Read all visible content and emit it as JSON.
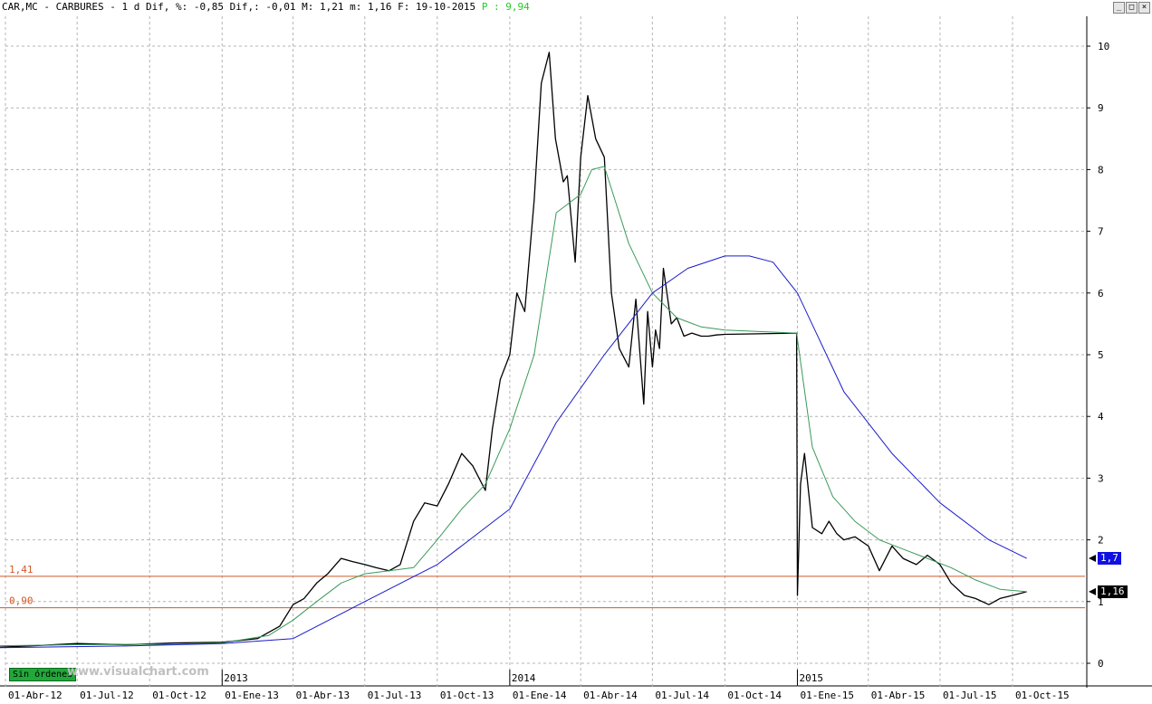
{
  "header": {
    "text": "CAR,MC - CARBURES -  1 d Dif, %: -0,85 Dif,: -0,01 M: 1,21 m: 1,16 F: 19-10-2015",
    "last_label": "P : 9,94"
  },
  "window_buttons": [
    "_",
    "□",
    "×"
  ],
  "orders_badge": "Sin órdenes",
  "watermark": "www.visualchart.com",
  "current_values": {
    "ma_long": "1,7",
    "price": "1,16"
  },
  "colors": {
    "price": "#000000",
    "ma_short": "#3a9a5a",
    "ma_long": "#1a1acc",
    "hline": "#d05a2a",
    "ma_long_box": "#1010e0",
    "price_box": "#000000"
  },
  "chart_data": {
    "type": "line",
    "ylim": [
      0,
      10.5
    ],
    "y_ticks": [
      0,
      1,
      2,
      3,
      4,
      5,
      6,
      7,
      8,
      9,
      10
    ],
    "x_ticks": [
      "01-Abr-12",
      "01-Jul-12",
      "01-Oct-12",
      "01-Ene-13",
      "01-Abr-13",
      "01-Jul-13",
      "01-Oct-13",
      "01-Ene-14",
      "01-Abr-14",
      "01-Jul-14",
      "01-Oct-14",
      "01-Ene-15",
      "01-Abr-15",
      "01-Jul-15",
      "01-Oct-15"
    ],
    "year_labels": [
      "2013",
      "2014",
      "2015"
    ],
    "hlines": [
      {
        "label": "1,41",
        "value": 1.41
      },
      {
        "label": "0,90",
        "value": 0.9
      }
    ],
    "series": [
      {
        "key": "price",
        "x": [
          "2012-03-01",
          "2012-05-01",
          "2012-07-01",
          "2012-09-01",
          "2012-11-01",
          "2013-01-01",
          "2013-02-15",
          "2013-03-15",
          "2013-04-01",
          "2013-04-15",
          "2013-05-01",
          "2013-05-15",
          "2013-06-01",
          "2013-06-15",
          "2013-07-01",
          "2013-07-15",
          "2013-08-01",
          "2013-08-15",
          "2013-09-01",
          "2013-09-15",
          "2013-10-01",
          "2013-10-15",
          "2013-11-01",
          "2013-11-15",
          "2013-12-01",
          "2013-12-10",
          "2013-12-20",
          "2014-01-01",
          "2014-01-10",
          "2014-01-20",
          "2014-02-01",
          "2014-02-10",
          "2014-02-20",
          "2014-02-28",
          "2014-03-10",
          "2014-03-15",
          "2014-03-25",
          "2014-04-01",
          "2014-04-10",
          "2014-04-20",
          "2014-05-01",
          "2014-05-10",
          "2014-05-20",
          "2014-06-01",
          "2014-06-10",
          "2014-06-20",
          "2014-06-25",
          "2014-07-01",
          "2014-07-05",
          "2014-07-10",
          "2014-07-15",
          "2014-07-25",
          "2014-08-01",
          "2014-08-10",
          "2014-08-20",
          "2014-09-01",
          "2014-09-10",
          "2014-09-20",
          "2014-10-01",
          "2014-12-31",
          "2015-01-01",
          "2015-01-05",
          "2015-01-10",
          "2015-01-20",
          "2015-02-01",
          "2015-02-10",
          "2015-02-20",
          "2015-03-01",
          "2015-03-15",
          "2015-04-01",
          "2015-04-15",
          "2015-05-01",
          "2015-05-15",
          "2015-06-01",
          "2015-06-15",
          "2015-07-01",
          "2015-07-15",
          "2015-08-01",
          "2015-08-15",
          "2015-09-01",
          "2015-09-15",
          "2015-10-01",
          "2015-10-19"
        ],
        "values": [
          0.25,
          0.28,
          0.32,
          0.3,
          0.33,
          0.34,
          0.4,
          0.6,
          0.95,
          1.05,
          1.3,
          1.45,
          1.7,
          1.65,
          1.6,
          1.55,
          1.5,
          1.6,
          2.3,
          2.6,
          2.55,
          2.9,
          3.4,
          3.2,
          2.8,
          3.8,
          4.6,
          5.0,
          6.0,
          5.7,
          7.5,
          9.4,
          9.9,
          8.5,
          7.8,
          7.9,
          6.5,
          8.2,
          9.2,
          8.5,
          8.2,
          6.0,
          5.1,
          4.8,
          5.9,
          4.2,
          5.7,
          4.8,
          5.4,
          5.1,
          6.4,
          5.5,
          5.6,
          5.3,
          5.35,
          5.3,
          5.3,
          5.32,
          5.33,
          5.35,
          1.1,
          2.9,
          3.4,
          2.2,
          2.1,
          2.3,
          2.1,
          2.0,
          2.05,
          1.9,
          1.5,
          1.9,
          1.7,
          1.6,
          1.75,
          1.6,
          1.3,
          1.1,
          1.05,
          0.95,
          1.05,
          1.1,
          1.16
        ]
      },
      {
        "key": "ma_short",
        "x": [
          "2012-03-01",
          "2012-07-01",
          "2012-11-01",
          "2013-01-01",
          "2013-03-01",
          "2013-04-01",
          "2013-05-01",
          "2013-06-01",
          "2013-07-01",
          "2013-08-01",
          "2013-09-01",
          "2013-10-01",
          "2013-11-01",
          "2013-12-01",
          "2014-01-01",
          "2014-02-01",
          "2014-03-01",
          "2014-04-01",
          "2014-04-15",
          "2014-05-01",
          "2014-06-01",
          "2014-07-01",
          "2014-08-01",
          "2014-09-01",
          "2014-10-01",
          "2014-12-31",
          "2015-01-20",
          "2015-02-15",
          "2015-03-15",
          "2015-04-15",
          "2015-05-15",
          "2015-06-15",
          "2015-07-15",
          "2015-08-15",
          "2015-09-15",
          "2015-10-19"
        ],
        "values": [
          0.28,
          0.3,
          0.31,
          0.33,
          0.45,
          0.7,
          1.0,
          1.3,
          1.45,
          1.5,
          1.55,
          2.0,
          2.5,
          2.9,
          3.8,
          5.0,
          7.3,
          7.6,
          8.0,
          8.05,
          6.8,
          6.0,
          5.6,
          5.45,
          5.4,
          5.35,
          3.5,
          2.7,
          2.3,
          2.0,
          1.85,
          1.7,
          1.55,
          1.35,
          1.2,
          1.16
        ]
      },
      {
        "key": "ma_long",
        "x": [
          "2012-03-01",
          "2012-09-01",
          "2013-01-01",
          "2013-04-01",
          "2013-07-01",
          "2013-10-01",
          "2014-01-01",
          "2014-03-01",
          "2014-05-01",
          "2014-07-01",
          "2014-08-15",
          "2014-10-01",
          "2014-11-01",
          "2014-12-01",
          "2015-01-01",
          "2015-03-01",
          "2015-05-01",
          "2015-07-01",
          "2015-09-01",
          "2015-10-19"
        ],
        "values": [
          0.25,
          0.28,
          0.32,
          0.4,
          1.0,
          1.6,
          2.5,
          3.9,
          5.0,
          6.0,
          6.4,
          6.6,
          6.6,
          6.5,
          6.0,
          4.4,
          3.4,
          2.6,
          2.0,
          1.7
        ]
      }
    ]
  }
}
